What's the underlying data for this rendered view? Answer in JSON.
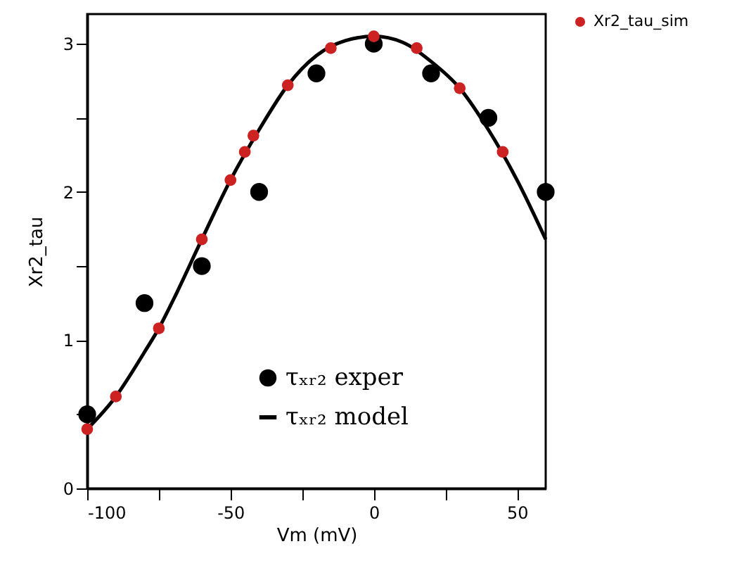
{
  "chart_data": {
    "type": "scatter",
    "xlabel": "Vm (mV)",
    "ylabel": "Xr2_tau",
    "xlim": [
      -100,
      60
    ],
    "ylim": [
      0,
      3.2
    ],
    "xticks": [
      -100,
      {
        "value": -75,
        "label": null
      },
      -50,
      {
        "value": -25,
        "label": null
      },
      0,
      {
        "value": 25,
        "label": null
      },
      50
    ],
    "yticks": [
      0,
      {
        "value": 0.5,
        "label": null
      },
      1,
      {
        "value": 1.5,
        "label": null
      },
      2,
      {
        "value": 2.5,
        "label": null
      },
      3
    ],
    "grid": false,
    "legend": "top right",
    "marker": "circle",
    "series": [
      {
        "name": "τₓᵣ₂ exper",
        "color": "#000000",
        "x": [
          -100,
          -80,
          -60,
          -40,
          -20,
          0,
          20,
          40,
          60
        ],
        "values": [
          0.5,
          1.25,
          1.5,
          2.0,
          2.8,
          3.0,
          2.8,
          2.5,
          2.0
        ]
      },
      {
        "name": "τₓᵣ₂ model",
        "type": "line",
        "marker": "none",
        "color": "#000000",
        "x": [
          -100,
          -90,
          -80,
          -75,
          -70,
          -60,
          -50,
          -40,
          -30,
          -20,
          -10,
          0,
          10,
          20,
          30,
          40,
          50,
          60
        ],
        "values": [
          0.4,
          0.62,
          0.92,
          1.08,
          1.27,
          1.68,
          2.08,
          2.42,
          2.72,
          2.92,
          3.02,
          3.05,
          3.01,
          2.88,
          2.7,
          2.42,
          2.08,
          1.68
        ]
      },
      {
        "name": "Xr2_tau_sim",
        "color": "#cc2222",
        "x": [
          -100,
          -90,
          -75,
          -60,
          -50,
          -45,
          -42,
          -30,
          -15,
          0,
          15,
          30,
          45
        ],
        "values": [
          0.4,
          0.62,
          1.08,
          1.68,
          2.08,
          2.27,
          2.38,
          2.72,
          2.97,
          3.05,
          2.97,
          2.7,
          2.27
        ]
      }
    ]
  }
}
